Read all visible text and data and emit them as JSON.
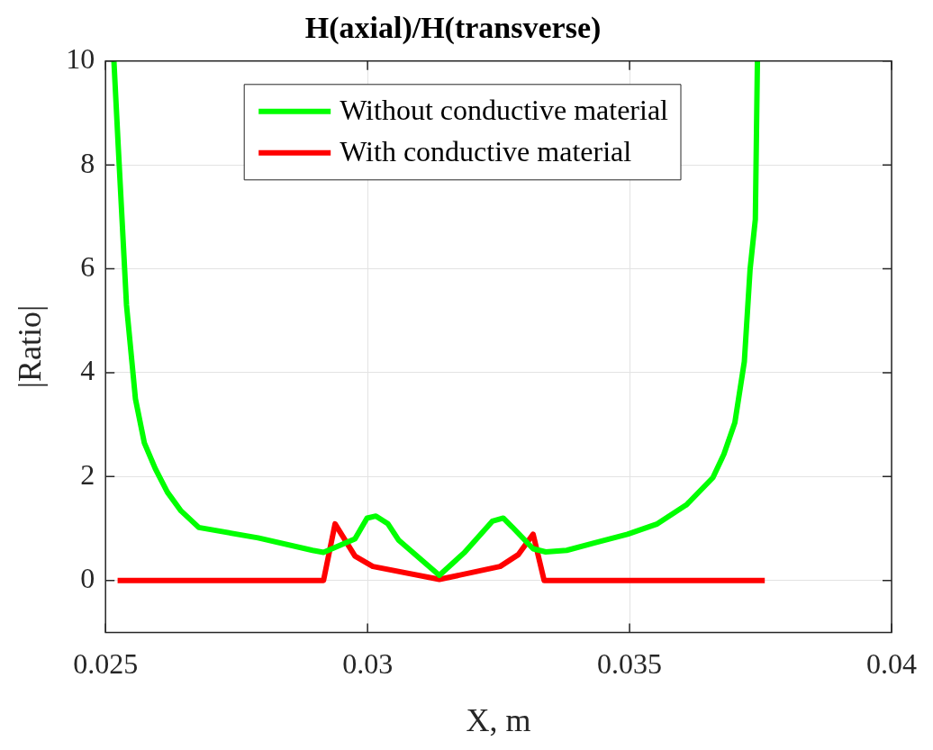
{
  "chart_data": {
    "type": "line",
    "title": "H(axial)/H(transverse)",
    "xlabel": "X, m",
    "ylabel": "|Ratio|",
    "xlim": [
      0.025,
      0.04
    ],
    "xticks": [
      0.025,
      0.03,
      0.035,
      0.04
    ],
    "ylim": [
      -1,
      10
    ],
    "yticks": [
      0,
      2,
      4,
      6,
      8,
      10
    ],
    "grid": true,
    "legend": "top",
    "line_style": "solid",
    "marker": "none",
    "series": [
      {
        "name": "Without conductive material",
        "color": "#00ff00",
        "x": [
          0.02516,
          0.02524,
          0.0254,
          0.02557,
          0.02574,
          0.02595,
          0.02618,
          0.02644,
          0.02678,
          0.02791,
          0.02895,
          0.02916,
          0.02976,
          0.02999,
          0.03016,
          0.03039,
          0.03059,
          0.03137,
          0.03184,
          0.03238,
          0.03259,
          0.03276,
          0.03316,
          0.0334,
          0.0338,
          0.03432,
          0.03496,
          0.03553,
          0.03609,
          0.03659,
          0.0368,
          0.03701,
          0.03719,
          0.0373,
          0.0374,
          0.03744
        ],
        "values": [
          10,
          8.4,
          5.3,
          3.5,
          2.65,
          2.15,
          1.7,
          1.34,
          1.02,
          0.82,
          0.58,
          0.54,
          0.8,
          1.2,
          1.24,
          1.09,
          0.78,
          0.1,
          0.53,
          1.14,
          1.2,
          1.03,
          0.61,
          0.55,
          0.58,
          0.72,
          0.89,
          1.09,
          1.46,
          1.98,
          2.43,
          3.04,
          4.21,
          5.99,
          6.95,
          10
        ]
      },
      {
        "name": "With conductive material",
        "color": "#ff0000",
        "x": [
          0.02523,
          0.02916,
          0.02938,
          0.02976,
          0.0301,
          0.03137,
          0.03253,
          0.03288,
          0.03316,
          0.03337,
          0.03758
        ],
        "values": [
          0,
          0,
          1.09,
          0.47,
          0.27,
          0.02,
          0.27,
          0.5,
          0.89,
          0,
          0
        ]
      }
    ]
  }
}
